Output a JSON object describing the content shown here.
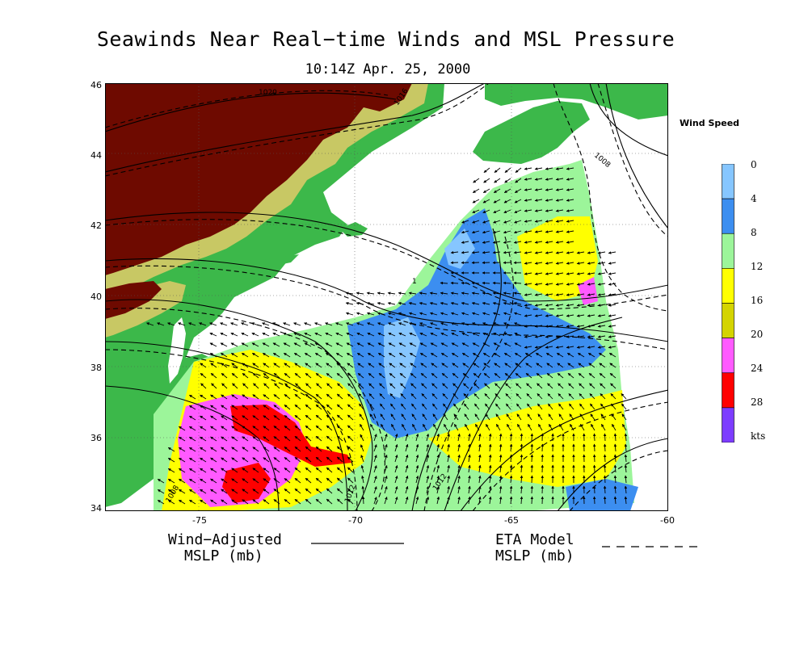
{
  "title": "Seawinds Near Real−time Winds and MSL Pressure",
  "subtitle": "10:14Z  Apr. 25, 2000",
  "map": {
    "lat_labels": [
      "46",
      "44",
      "42",
      "40",
      "38",
      "36",
      "34"
    ],
    "lat_values": [
      46,
      44,
      42,
      40,
      38,
      36,
      34
    ],
    "lon_labels": [
      "-75",
      "-70",
      "-65",
      "-60"
    ],
    "lon_values": [
      -75,
      -70,
      -65,
      -60
    ],
    "lon_range": [
      -78,
      -60
    ],
    "lat_range": [
      34,
      46
    ],
    "contour_labels": [
      "1020",
      "1016",
      "1008",
      "1",
      "1012",
      "1012",
      "1008"
    ]
  },
  "legend": {
    "title": "Wind Speed",
    "unit": "kts",
    "levels": [
      "0",
      "4",
      "8",
      "12",
      "16",
      "20",
      "24",
      "28"
    ],
    "colors": [
      "#86c6ff",
      "#3c8ef0",
      "#9cf59a",
      "#ffff00",
      "#d4d400",
      "#ff5aff",
      "#ff0000",
      "#7d3cff"
    ]
  },
  "key": {
    "solid_label_1": "Wind−Adjusted",
    "solid_label_2": "MSLP (mb)",
    "dashed_label_1": "ETA Model",
    "dashed_label_2": "MSLP (mb)"
  },
  "colors": {
    "land_low": "#3cb84a",
    "land_mid": "#c8c864",
    "land_high": "#6e0a00",
    "ocean": "#ffffff"
  }
}
